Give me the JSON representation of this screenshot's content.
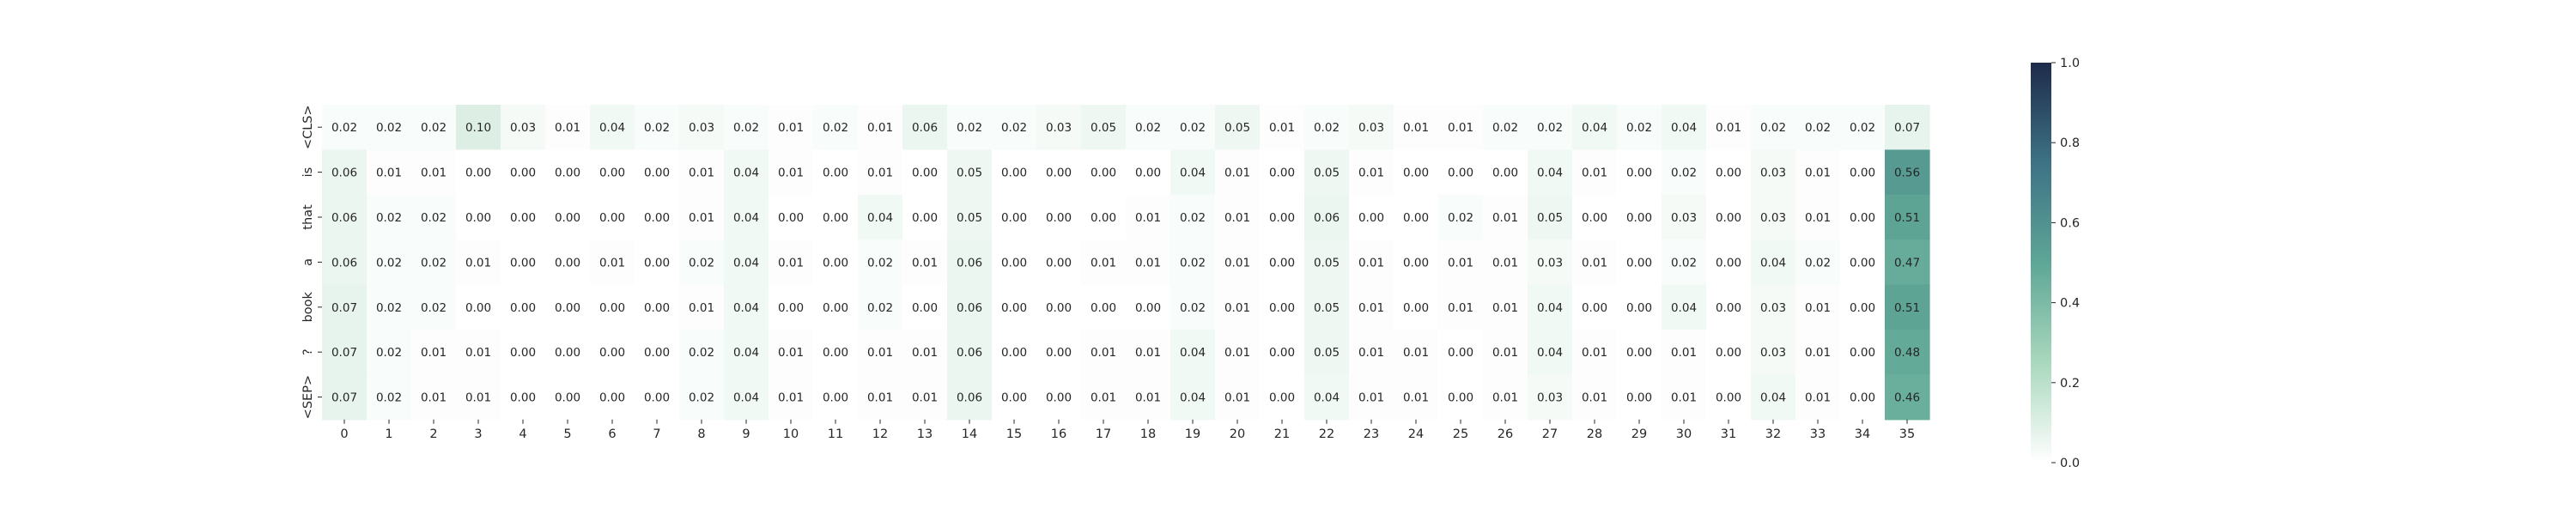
{
  "chart_data": {
    "type": "heatmap",
    "title": "",
    "xlabel": "",
    "ylabel": "",
    "x_tick_labels": [
      "0",
      "1",
      "2",
      "3",
      "4",
      "5",
      "6",
      "7",
      "8",
      "9",
      "10",
      "11",
      "12",
      "13",
      "14",
      "15",
      "16",
      "17",
      "18",
      "19",
      "20",
      "21",
      "22",
      "23",
      "24",
      "25",
      "26",
      "27",
      "28",
      "29",
      "30",
      "31",
      "32",
      "33",
      "34",
      "35"
    ],
    "y_tick_labels": [
      "<CLS>",
      "is",
      "that",
      "a",
      "book",
      "?",
      "<SEP>"
    ],
    "values": [
      [
        0.02,
        0.02,
        0.02,
        0.1,
        0.03,
        0.01,
        0.04,
        0.02,
        0.03,
        0.02,
        0.01,
        0.02,
        0.01,
        0.06,
        0.02,
        0.02,
        0.03,
        0.05,
        0.02,
        0.02,
        0.05,
        0.01,
        0.02,
        0.03,
        0.01,
        0.01,
        0.02,
        0.02,
        0.04,
        0.02,
        0.04,
        0.01,
        0.02,
        0.02,
        0.02,
        0.07
      ],
      [
        0.06,
        0.01,
        0.01,
        0.0,
        0.0,
        0.0,
        0.0,
        0.0,
        0.01,
        0.04,
        0.01,
        0.0,
        0.01,
        0.0,
        0.05,
        0.0,
        0.0,
        0.0,
        0.0,
        0.04,
        0.01,
        0.0,
        0.05,
        0.01,
        0.0,
        0.0,
        0.0,
        0.04,
        0.01,
        0.0,
        0.02,
        0.0,
        0.03,
        0.01,
        0.0,
        0.56
      ],
      [
        0.06,
        0.02,
        0.02,
        0.0,
        0.0,
        0.0,
        0.0,
        0.0,
        0.01,
        0.04,
        0.0,
        0.0,
        0.04,
        0.0,
        0.05,
        0.0,
        0.0,
        0.0,
        0.01,
        0.02,
        0.01,
        0.0,
        0.06,
        0.0,
        0.0,
        0.02,
        0.01,
        0.05,
        0.0,
        0.0,
        0.03,
        0.0,
        0.03,
        0.01,
        0.0,
        0.51
      ],
      [
        0.06,
        0.02,
        0.02,
        0.01,
        0.0,
        0.0,
        0.01,
        0.0,
        0.02,
        0.04,
        0.01,
        0.0,
        0.02,
        0.01,
        0.06,
        0.0,
        0.0,
        0.01,
        0.01,
        0.02,
        0.01,
        0.0,
        0.05,
        0.01,
        0.0,
        0.01,
        0.01,
        0.03,
        0.01,
        0.0,
        0.02,
        0.0,
        0.04,
        0.02,
        0.0,
        0.47
      ],
      [
        0.07,
        0.02,
        0.02,
        0.0,
        0.0,
        0.0,
        0.0,
        0.0,
        0.01,
        0.04,
        0.0,
        0.0,
        0.02,
        0.0,
        0.06,
        0.0,
        0.0,
        0.0,
        0.0,
        0.02,
        0.01,
        0.0,
        0.05,
        0.01,
        0.0,
        0.01,
        0.01,
        0.04,
        0.0,
        0.0,
        0.04,
        0.0,
        0.03,
        0.01,
        0.0,
        0.51
      ],
      [
        0.07,
        0.02,
        0.01,
        0.01,
        0.0,
        0.0,
        0.0,
        0.0,
        0.02,
        0.04,
        0.01,
        0.0,
        0.01,
        0.01,
        0.06,
        0.0,
        0.0,
        0.01,
        0.01,
        0.04,
        0.01,
        0.0,
        0.05,
        0.01,
        0.01,
        0.0,
        0.01,
        0.04,
        0.01,
        0.0,
        0.01,
        0.0,
        0.03,
        0.01,
        0.0,
        0.48
      ],
      [
        0.07,
        0.02,
        0.01,
        0.01,
        0.0,
        0.0,
        0.0,
        0.0,
        0.02,
        0.04,
        0.01,
        0.0,
        0.01,
        0.01,
        0.06,
        0.0,
        0.0,
        0.01,
        0.01,
        0.04,
        0.01,
        0.0,
        0.04,
        0.01,
        0.01,
        0.0,
        0.01,
        0.03,
        0.01,
        0.0,
        0.01,
        0.0,
        0.04,
        0.01,
        0.0,
        0.46
      ]
    ],
    "value_format": "0.00",
    "annotations": true,
    "colorbar": {
      "min": 0.0,
      "max": 1.0,
      "ticks": [
        0.0,
        0.2,
        0.4,
        0.6,
        0.8,
        1.0
      ],
      "tick_labels": [
        "0.0",
        "0.2",
        "0.4",
        "0.6",
        "0.8",
        "1.0"
      ],
      "placement": "right"
    },
    "colormap": [
      "#ffffff",
      "#a9d8bd",
      "#5ea696",
      "#3d7285",
      "#1e2b4a"
    ],
    "annotation_color": "#262626",
    "annotation_color_dark": "#ffffff",
    "grid": false
  }
}
